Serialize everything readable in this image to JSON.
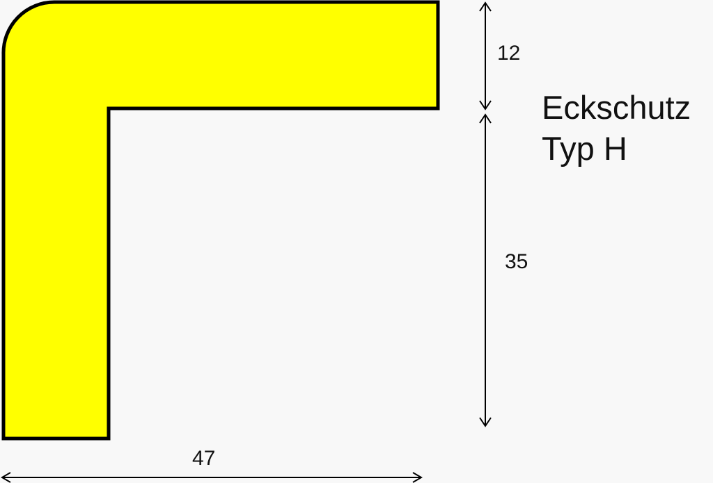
{
  "title": {
    "line1": "Eckschutz",
    "line2": "Typ H"
  },
  "dimensions": {
    "thickness": "12",
    "leg_height": "35",
    "width": "47"
  },
  "colors": {
    "profile_fill": "#ffff00",
    "outline": "#000000",
    "background": "#f8f8f8"
  }
}
